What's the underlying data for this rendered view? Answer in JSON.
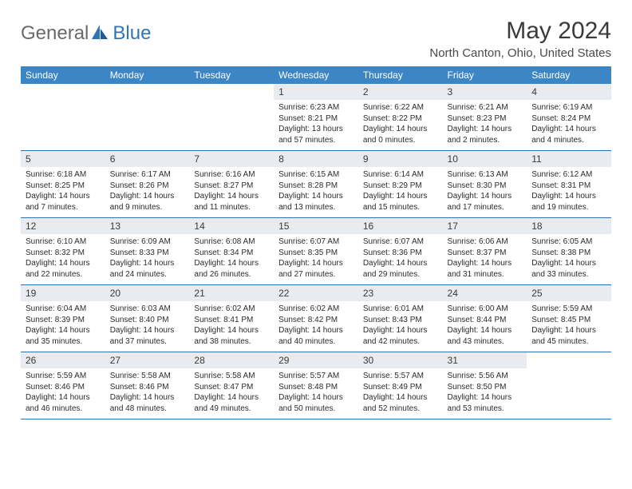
{
  "brand": {
    "general": "General",
    "blue": "Blue"
  },
  "title": "May 2024",
  "location": "North Canton, Ohio, United States",
  "colors": {
    "header_bg": "#3d86c6",
    "header_text": "#ffffff",
    "daynum_bg": "#e8ebef",
    "border": "#2f75b5",
    "logo_gray": "#6a6a6a",
    "logo_blue": "#2f75b5"
  },
  "day_headers": [
    "Sunday",
    "Monday",
    "Tuesday",
    "Wednesday",
    "Thursday",
    "Friday",
    "Saturday"
  ],
  "weeks": [
    [
      {
        "n": "",
        "sr": "",
        "ss": "",
        "dl": ""
      },
      {
        "n": "",
        "sr": "",
        "ss": "",
        "dl": ""
      },
      {
        "n": "",
        "sr": "",
        "ss": "",
        "dl": ""
      },
      {
        "n": "1",
        "sr": "Sunrise: 6:23 AM",
        "ss": "Sunset: 8:21 PM",
        "dl": "Daylight: 13 hours and 57 minutes."
      },
      {
        "n": "2",
        "sr": "Sunrise: 6:22 AM",
        "ss": "Sunset: 8:22 PM",
        "dl": "Daylight: 14 hours and 0 minutes."
      },
      {
        "n": "3",
        "sr": "Sunrise: 6:21 AM",
        "ss": "Sunset: 8:23 PM",
        "dl": "Daylight: 14 hours and 2 minutes."
      },
      {
        "n": "4",
        "sr": "Sunrise: 6:19 AM",
        "ss": "Sunset: 8:24 PM",
        "dl": "Daylight: 14 hours and 4 minutes."
      }
    ],
    [
      {
        "n": "5",
        "sr": "Sunrise: 6:18 AM",
        "ss": "Sunset: 8:25 PM",
        "dl": "Daylight: 14 hours and 7 minutes."
      },
      {
        "n": "6",
        "sr": "Sunrise: 6:17 AM",
        "ss": "Sunset: 8:26 PM",
        "dl": "Daylight: 14 hours and 9 minutes."
      },
      {
        "n": "7",
        "sr": "Sunrise: 6:16 AM",
        "ss": "Sunset: 8:27 PM",
        "dl": "Daylight: 14 hours and 11 minutes."
      },
      {
        "n": "8",
        "sr": "Sunrise: 6:15 AM",
        "ss": "Sunset: 8:28 PM",
        "dl": "Daylight: 14 hours and 13 minutes."
      },
      {
        "n": "9",
        "sr": "Sunrise: 6:14 AM",
        "ss": "Sunset: 8:29 PM",
        "dl": "Daylight: 14 hours and 15 minutes."
      },
      {
        "n": "10",
        "sr": "Sunrise: 6:13 AM",
        "ss": "Sunset: 8:30 PM",
        "dl": "Daylight: 14 hours and 17 minutes."
      },
      {
        "n": "11",
        "sr": "Sunrise: 6:12 AM",
        "ss": "Sunset: 8:31 PM",
        "dl": "Daylight: 14 hours and 19 minutes."
      }
    ],
    [
      {
        "n": "12",
        "sr": "Sunrise: 6:10 AM",
        "ss": "Sunset: 8:32 PM",
        "dl": "Daylight: 14 hours and 22 minutes."
      },
      {
        "n": "13",
        "sr": "Sunrise: 6:09 AM",
        "ss": "Sunset: 8:33 PM",
        "dl": "Daylight: 14 hours and 24 minutes."
      },
      {
        "n": "14",
        "sr": "Sunrise: 6:08 AM",
        "ss": "Sunset: 8:34 PM",
        "dl": "Daylight: 14 hours and 26 minutes."
      },
      {
        "n": "15",
        "sr": "Sunrise: 6:07 AM",
        "ss": "Sunset: 8:35 PM",
        "dl": "Daylight: 14 hours and 27 minutes."
      },
      {
        "n": "16",
        "sr": "Sunrise: 6:07 AM",
        "ss": "Sunset: 8:36 PM",
        "dl": "Daylight: 14 hours and 29 minutes."
      },
      {
        "n": "17",
        "sr": "Sunrise: 6:06 AM",
        "ss": "Sunset: 8:37 PM",
        "dl": "Daylight: 14 hours and 31 minutes."
      },
      {
        "n": "18",
        "sr": "Sunrise: 6:05 AM",
        "ss": "Sunset: 8:38 PM",
        "dl": "Daylight: 14 hours and 33 minutes."
      }
    ],
    [
      {
        "n": "19",
        "sr": "Sunrise: 6:04 AM",
        "ss": "Sunset: 8:39 PM",
        "dl": "Daylight: 14 hours and 35 minutes."
      },
      {
        "n": "20",
        "sr": "Sunrise: 6:03 AM",
        "ss": "Sunset: 8:40 PM",
        "dl": "Daylight: 14 hours and 37 minutes."
      },
      {
        "n": "21",
        "sr": "Sunrise: 6:02 AM",
        "ss": "Sunset: 8:41 PM",
        "dl": "Daylight: 14 hours and 38 minutes."
      },
      {
        "n": "22",
        "sr": "Sunrise: 6:02 AM",
        "ss": "Sunset: 8:42 PM",
        "dl": "Daylight: 14 hours and 40 minutes."
      },
      {
        "n": "23",
        "sr": "Sunrise: 6:01 AM",
        "ss": "Sunset: 8:43 PM",
        "dl": "Daylight: 14 hours and 42 minutes."
      },
      {
        "n": "24",
        "sr": "Sunrise: 6:00 AM",
        "ss": "Sunset: 8:44 PM",
        "dl": "Daylight: 14 hours and 43 minutes."
      },
      {
        "n": "25",
        "sr": "Sunrise: 5:59 AM",
        "ss": "Sunset: 8:45 PM",
        "dl": "Daylight: 14 hours and 45 minutes."
      }
    ],
    [
      {
        "n": "26",
        "sr": "Sunrise: 5:59 AM",
        "ss": "Sunset: 8:46 PM",
        "dl": "Daylight: 14 hours and 46 minutes."
      },
      {
        "n": "27",
        "sr": "Sunrise: 5:58 AM",
        "ss": "Sunset: 8:46 PM",
        "dl": "Daylight: 14 hours and 48 minutes."
      },
      {
        "n": "28",
        "sr": "Sunrise: 5:58 AM",
        "ss": "Sunset: 8:47 PM",
        "dl": "Daylight: 14 hours and 49 minutes."
      },
      {
        "n": "29",
        "sr": "Sunrise: 5:57 AM",
        "ss": "Sunset: 8:48 PM",
        "dl": "Daylight: 14 hours and 50 minutes."
      },
      {
        "n": "30",
        "sr": "Sunrise: 5:57 AM",
        "ss": "Sunset: 8:49 PM",
        "dl": "Daylight: 14 hours and 52 minutes."
      },
      {
        "n": "31",
        "sr": "Sunrise: 5:56 AM",
        "ss": "Sunset: 8:50 PM",
        "dl": "Daylight: 14 hours and 53 minutes."
      },
      {
        "n": "",
        "sr": "",
        "ss": "",
        "dl": ""
      }
    ]
  ]
}
